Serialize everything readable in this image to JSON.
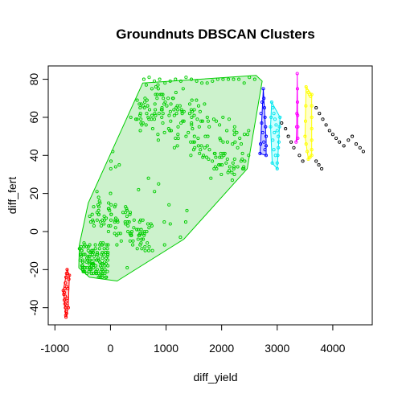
{
  "chart_data": {
    "type": "scatter",
    "title": "Groundnuts DBSCAN Clusters",
    "xlabel": "diff_yield",
    "ylabel": "diff_fert",
    "xlim": [
      -1120,
      4710
    ],
    "ylim": [
      -49,
      87
    ],
    "xticks": [
      -1000,
      0,
      1000,
      2000,
      3000,
      4000
    ],
    "yticks": [
      -40,
      -20,
      0,
      20,
      40,
      60,
      80
    ],
    "grid": false,
    "legend": "none",
    "clusters": [
      {
        "color": "#ff0000",
        "fill": "#ffcccc",
        "hull": [
          [
            -780,
            -20
          ],
          [
            -740,
            -23
          ],
          [
            -760,
            -40
          ],
          [
            -800,
            -45
          ],
          [
            -830,
            -36
          ],
          [
            -850,
            -31
          ]
        ],
        "points": [
          [
            -780,
            -20
          ],
          [
            -790,
            -22
          ],
          [
            -800,
            -24
          ],
          [
            -810,
            -27
          ],
          [
            -820,
            -30
          ],
          [
            -830,
            -32
          ],
          [
            -840,
            -33
          ],
          [
            -850,
            -31
          ],
          [
            -830,
            -36
          ],
          [
            -820,
            -38
          ],
          [
            -810,
            -40
          ],
          [
            -800,
            -42
          ],
          [
            -800,
            -45
          ],
          [
            -790,
            -43
          ],
          [
            -780,
            -35
          ],
          [
            -770,
            -30
          ],
          [
            -760,
            -40
          ],
          [
            -750,
            -25
          ],
          [
            -740,
            -23
          ],
          [
            -800,
            -37
          ],
          [
            -815,
            -34
          ],
          [
            -790,
            -29
          ],
          [
            -805,
            -44
          ],
          [
            -785,
            -39
          ]
        ]
      },
      {
        "color": "#00cd00",
        "fill": "#ccf2cc",
        "hull": [
          [
            580,
            78
          ],
          [
            2620,
            82
          ],
          [
            2730,
            79
          ],
          [
            2460,
            33
          ],
          [
            1320,
            -4
          ],
          [
            120,
            -26
          ],
          [
            -380,
            -24
          ],
          [
            -570,
            -19
          ],
          [
            -560,
            -7
          ],
          [
            -400,
            15
          ]
        ],
        "points": []
      },
      {
        "color": "#0000ff",
        "fill": "#ccccff",
        "hull": [
          [
            2750,
            75
          ],
          [
            2800,
            48
          ],
          [
            2800,
            40
          ],
          [
            2690,
            41
          ],
          [
            2700,
            46
          ]
        ],
        "points": [
          [
            2750,
            75
          ],
          [
            2760,
            70
          ],
          [
            2770,
            65
          ],
          [
            2780,
            60
          ],
          [
            2790,
            55
          ],
          [
            2800,
            50
          ],
          [
            2800,
            45
          ],
          [
            2800,
            40
          ],
          [
            2780,
            43
          ],
          [
            2760,
            47
          ],
          [
            2740,
            52
          ],
          [
            2720,
            57
          ],
          [
            2700,
            46
          ],
          [
            2690,
            41
          ],
          [
            2710,
            62
          ],
          [
            2730,
            68
          ]
        ]
      },
      {
        "color": "#00e5ee",
        "fill": "#ccffff",
        "hull": [
          [
            2900,
            68
          ],
          [
            3050,
            60
          ],
          [
            3000,
            33
          ],
          [
            2910,
            36
          ],
          [
            2880,
            55
          ]
        ],
        "points": [
          [
            2900,
            68
          ],
          [
            2920,
            65
          ],
          [
            2940,
            62
          ],
          [
            2960,
            59
          ],
          [
            2980,
            56
          ],
          [
            3000,
            53
          ],
          [
            3020,
            50
          ],
          [
            3050,
            60
          ],
          [
            3040,
            55
          ],
          [
            3030,
            47
          ],
          [
            3020,
            44
          ],
          [
            3010,
            40
          ],
          [
            3000,
            36
          ],
          [
            3000,
            33
          ],
          [
            2970,
            40
          ],
          [
            2940,
            43
          ],
          [
            2910,
            36
          ],
          [
            2880,
            55
          ],
          [
            2890,
            60
          ],
          [
            2920,
            48
          ],
          [
            2950,
            52
          ]
        ]
      },
      {
        "color": "#ff00ff",
        "fill": "#ffccff",
        "hull": [
          [
            3360,
            83
          ],
          [
            3370,
            49
          ],
          [
            3340,
            47
          ],
          [
            3350,
            55
          ]
        ],
        "points": [
          [
            3360,
            83
          ],
          [
            3365,
            75
          ],
          [
            3365,
            68
          ],
          [
            3368,
            61
          ],
          [
            3370,
            55
          ],
          [
            3370,
            49
          ],
          [
            3340,
            47
          ],
          [
            3350,
            55
          ],
          [
            3355,
            62
          ]
        ]
      },
      {
        "color": "#ffff00",
        "fill": "#ffffcc",
        "hull": [
          [
            3520,
            76
          ],
          [
            3620,
            72
          ],
          [
            3620,
            40
          ],
          [
            3560,
            38
          ],
          [
            3500,
            50
          ]
        ],
        "points": [
          [
            3520,
            76
          ],
          [
            3540,
            74
          ],
          [
            3560,
            73
          ],
          [
            3580,
            72
          ],
          [
            3600,
            71
          ],
          [
            3620,
            72
          ],
          [
            3620,
            66
          ],
          [
            3620,
            60
          ],
          [
            3620,
            54
          ],
          [
            3620,
            48
          ],
          [
            3620,
            43
          ],
          [
            3620,
            40
          ],
          [
            3590,
            39
          ],
          [
            3560,
            38
          ],
          [
            3540,
            42
          ],
          [
            3520,
            46
          ],
          [
            3500,
            50
          ],
          [
            3510,
            58
          ],
          [
            3515,
            66
          ]
        ]
      },
      {
        "color": "#000000",
        "fill": "none",
        "hull": [],
        "points": [
          [
            3080,
            57
          ],
          [
            3150,
            54
          ],
          [
            3200,
            50
          ],
          [
            3250,
            47
          ],
          [
            3300,
            44
          ],
          [
            3400,
            40
          ],
          [
            3460,
            37
          ],
          [
            3700,
            65
          ],
          [
            3760,
            62
          ],
          [
            3820,
            59
          ],
          [
            3880,
            56
          ],
          [
            3940,
            53
          ],
          [
            4000,
            51
          ],
          [
            4060,
            49
          ],
          [
            4120,
            47
          ],
          [
            4200,
            45
          ],
          [
            4280,
            48
          ],
          [
            4350,
            50
          ],
          [
            4420,
            46
          ],
          [
            4490,
            44
          ],
          [
            4550,
            42
          ],
          [
            3750,
            35
          ],
          [
            3800,
            33
          ],
          [
            3700,
            37
          ]
        ]
      }
    ]
  }
}
